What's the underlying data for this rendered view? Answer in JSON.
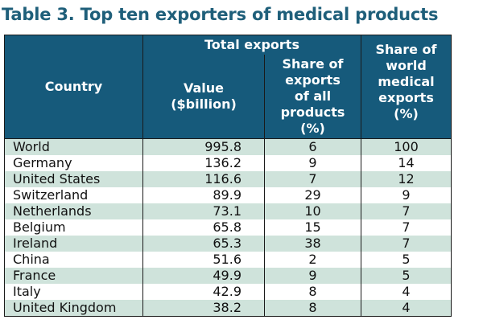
{
  "title": "Table 3. Top ten exporters of medical products",
  "headers": {
    "country": "Country",
    "total_exports": "Total exports",
    "value": "Value ($billion)",
    "share_all": "Share of exports of all products (%)",
    "share_world": "Share of world medical exports (%)"
  },
  "rows": [
    {
      "country": "World",
      "value": "995.8",
      "share_all": "6",
      "share_world": "100"
    },
    {
      "country": "Germany",
      "value": "136.2",
      "share_all": "9",
      "share_world": "14"
    },
    {
      "country": "United States",
      "value": "116.6",
      "share_all": "7",
      "share_world": "12"
    },
    {
      "country": "Switzerland",
      "value": "89.9",
      "share_all": "29",
      "share_world": "9"
    },
    {
      "country": "Netherlands",
      "value": "73.1",
      "share_all": "10",
      "share_world": "7"
    },
    {
      "country": "Belgium",
      "value": "65.8",
      "share_all": "15",
      "share_world": "7"
    },
    {
      "country": "Ireland",
      "value": "65.3",
      "share_all": "38",
      "share_world": "7"
    },
    {
      "country": "China",
      "value": "51.6",
      "share_all": "2",
      "share_world": "5"
    },
    {
      "country": "France",
      "value": "49.9",
      "share_all": "9",
      "share_world": "5"
    },
    {
      "country": "Italy",
      "value": "42.9",
      "share_all": "8",
      "share_world": "4"
    },
    {
      "country": "United Kingdom",
      "value": "38.2",
      "share_all": "8",
      "share_world": "4"
    }
  ],
  "colors": {
    "header_bg": "#165a7b",
    "header_text": "#ffffff",
    "title_text": "#1f5f7a",
    "stripe_bg": "#cfe3db"
  }
}
